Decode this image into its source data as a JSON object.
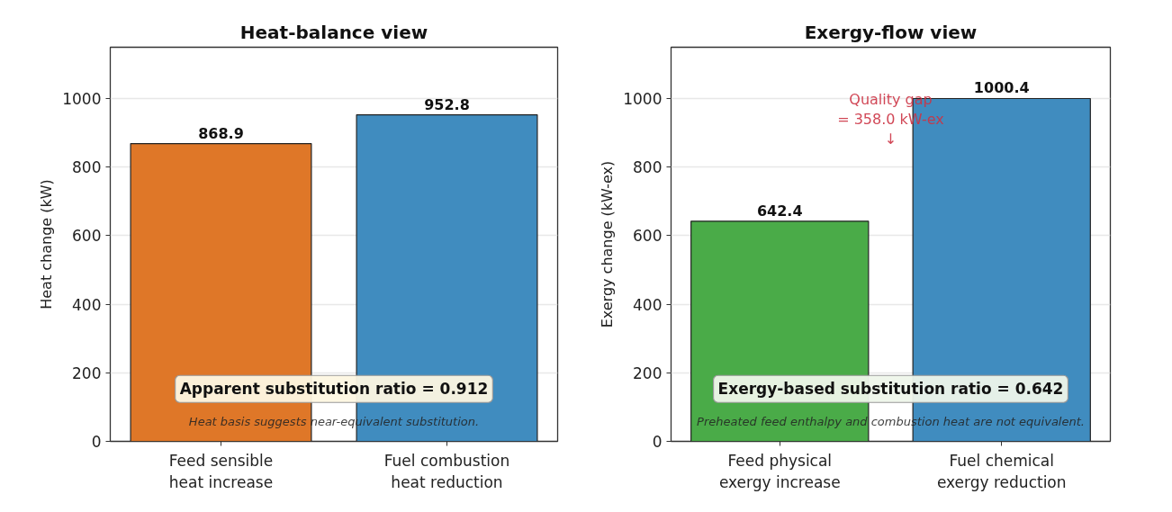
{
  "chart_data": [
    {
      "type": "bar",
      "title": "Heat-balance view",
      "ylabel": "Heat change (kW)",
      "categories": [
        "Feed sensible\nheat increase",
        "Fuel combustion\nheat reduction"
      ],
      "values": [
        868.9,
        952.8
      ],
      "colors": [
        "#df7728",
        "#408cbf"
      ],
      "ylim": [
        0,
        1150
      ],
      "yticks": [
        0,
        200,
        400,
        600,
        800,
        1000
      ],
      "grid": "y",
      "data_labels": true,
      "annotations": [
        "Apparent substitution ratio = 0.912",
        "Heat basis suggests near-equivalent substitution."
      ]
    },
    {
      "type": "bar",
      "title": "Exergy-flow view",
      "ylabel": "Exergy change (kW-ex)",
      "categories": [
        "Feed physical\nexergy increase",
        "Fuel chemical\nexergy reduction"
      ],
      "values": [
        642.4,
        1000.4
      ],
      "colors": [
        "#4aab48",
        "#408cbf"
      ],
      "ylim": [
        0,
        1150
      ],
      "yticks": [
        0,
        200,
        400,
        600,
        800,
        1000
      ],
      "grid": "y",
      "data_labels": true,
      "annotations": [
        "Exergy-based substitution ratio = 0.642",
        "Preheated feed enthalpy and combustion heat are not equivalent.",
        "Quality gap\n= 358.0 kW-ex\n↓"
      ]
    }
  ]
}
